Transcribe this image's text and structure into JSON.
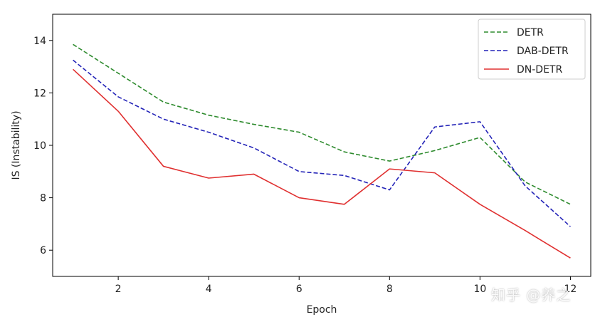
{
  "chart_data": {
    "type": "line",
    "title": "",
    "xlabel": "Epoch",
    "ylabel": "IS (Instability)",
    "xlim": [
      0.55,
      12.45
    ],
    "ylim": [
      5.0,
      15.0
    ],
    "xticks": [
      2,
      4,
      6,
      8,
      10,
      12
    ],
    "yticks": [
      6,
      8,
      10,
      12,
      14
    ],
    "grid": false,
    "legend_position": "top-right",
    "x": [
      1,
      2,
      3,
      4,
      5,
      6,
      7,
      8,
      9,
      10,
      11,
      12
    ],
    "series": [
      {
        "name": "DETR",
        "color": "#2e8b2e",
        "style": "dashed",
        "values": [
          13.85,
          12.75,
          11.65,
          11.15,
          10.8,
          10.5,
          9.75,
          9.4,
          9.8,
          10.3,
          8.6,
          7.75
        ]
      },
      {
        "name": "DAB-DETR",
        "color": "#2424b8",
        "style": "dashed",
        "values": [
          13.25,
          11.85,
          11.0,
          10.5,
          9.9,
          9.0,
          8.85,
          8.3,
          10.7,
          10.9,
          8.45,
          6.9
        ]
      },
      {
        "name": "DN-DETR",
        "color": "#e03030",
        "style": "solid",
        "values": [
          12.9,
          11.3,
          9.2,
          8.75,
          8.9,
          8.0,
          7.75,
          9.1,
          8.95,
          7.75,
          6.75,
          5.7
        ]
      }
    ]
  },
  "watermark": "知乎 @养之"
}
